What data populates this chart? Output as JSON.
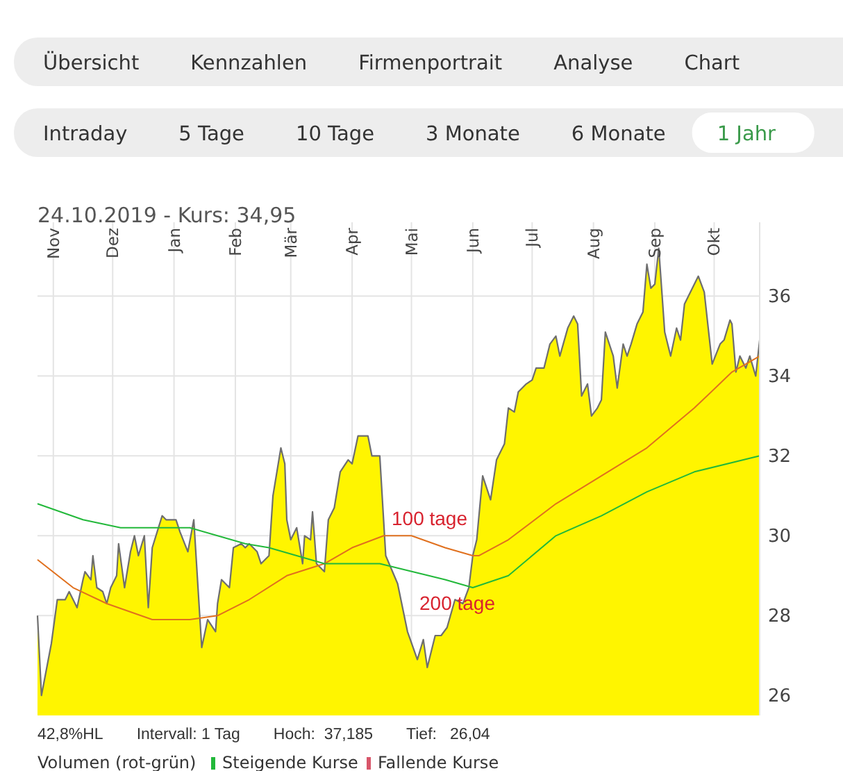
{
  "chart_data": {
    "type": "area",
    "title": "24.10.2019  - Kurs: 34,95",
    "annotations": [
      "Übersicht",
      "Kennzahlen",
      "Firmenportrait",
      "Analyse",
      "Chart",
      "Intraday",
      "5 Tage",
      "10 Tage",
      "3 Monate",
      "6 Monate",
      "1 Jahr",
      "42,8%HL",
      "Intervall: 1 Tag",
      "Hoch:  37,185",
      "Tief:   26,04",
      "Volumen (rot-grün)",
      "Steigende Kurse",
      "Fallende Kurse"
    ],
    "xlim": [
      "2018-10-24",
      "2019-10-24"
    ],
    "xticks": [
      {
        "value": "2018-11-01",
        "label": "Nov"
      },
      {
        "value": "2018-12-01",
        "label": "Dez"
      },
      {
        "value": "2019-01-01",
        "label": "Jan"
      },
      {
        "value": "2019-02-01",
        "label": "Feb"
      },
      {
        "value": "2019-03-01",
        "label": "Mär"
      },
      {
        "value": "2019-04-01",
        "label": "Apr"
      },
      {
        "value": "2019-05-01",
        "label": "Mai"
      },
      {
        "value": "2019-06-01",
        "label": "Jun"
      },
      {
        "value": "2019-07-01",
        "label": "Jul"
      },
      {
        "value": "2019-08-01",
        "label": "Aug"
      },
      {
        "value": "2019-09-01",
        "label": "Sep"
      },
      {
        "value": "2019-10-01",
        "label": "Okt"
      }
    ],
    "ylim": [
      25.5,
      37.85
    ],
    "yticks": [
      26,
      28,
      30,
      32,
      34,
      36
    ],
    "grid": true,
    "series": [
      {
        "color": "#fff500",
        "x": [
          "2018-10-24",
          "2018-10-26",
          "2018-10-31",
          "2018-11-03",
          "2018-11-07",
          "2018-11-09",
          "2018-11-13",
          "2018-11-16",
          "2018-11-17",
          "2018-11-20",
          "2018-11-21",
          "2018-11-23",
          "2018-11-26",
          "2018-11-28",
          "2018-11-30",
          "2018-12-03",
          "2018-12-04",
          "2018-12-07",
          "2018-12-10",
          "2018-12-12",
          "2018-12-14",
          "2018-12-17",
          "2018-12-19",
          "2018-12-21",
          "2018-12-26",
          "2018-12-28",
          "2019-01-02",
          "2019-01-04",
          "2019-01-08",
          "2019-01-11",
          "2019-01-15",
          "2019-01-18",
          "2019-01-22",
          "2019-01-23",
          "2019-01-25",
          "2019-01-29",
          "2019-01-31",
          "2019-02-04",
          "2019-02-06",
          "2019-02-08",
          "2019-02-12",
          "2019-02-14",
          "2019-02-18",
          "2019-02-20",
          "2019-02-24",
          "2019-02-26",
          "2019-02-27",
          "2019-03-01",
          "2019-03-04",
          "2019-03-07",
          "2019-03-08",
          "2019-03-11",
          "2019-03-12",
          "2019-03-14",
          "2019-03-18",
          "2019-03-20",
          "2019-03-23",
          "2019-03-26",
          "2019-03-30",
          "2019-04-01",
          "2019-04-04",
          "2019-04-09",
          "2019-04-11",
          "2019-04-15",
          "2019-04-18",
          "2019-04-24",
          "2019-04-29",
          "2019-05-04",
          "2019-05-07",
          "2019-05-09",
          "2019-05-13",
          "2019-05-16",
          "2019-05-19",
          "2019-05-23",
          "2019-05-27",
          "2019-05-30",
          "2019-06-01",
          "2019-06-03",
          "2019-06-06",
          "2019-06-10",
          "2019-06-13",
          "2019-06-17",
          "2019-06-19",
          "2019-06-22",
          "2019-06-24",
          "2019-06-28",
          "2019-07-01",
          "2019-07-03",
          "2019-07-07",
          "2019-07-10",
          "2019-07-13",
          "2019-07-15",
          "2019-07-19",
          "2019-07-22",
          "2019-07-24",
          "2019-07-26",
          "2019-07-29",
          "2019-07-31",
          "2019-08-03",
          "2019-08-05",
          "2019-08-07",
          "2019-08-11",
          "2019-08-13",
          "2019-08-16",
          "2019-08-18",
          "2019-08-20",
          "2019-08-23",
          "2019-08-26",
          "2019-08-28",
          "2019-08-30",
          "2019-09-01",
          "2019-09-03",
          "2019-09-06",
          "2019-09-09",
          "2019-09-12",
          "2019-09-14",
          "2019-09-16",
          "2019-09-20",
          "2019-09-23",
          "2019-09-26",
          "2019-09-28",
          "2019-09-30",
          "2019-10-04",
          "2019-10-06",
          "2019-10-09",
          "2019-10-10",
          "2019-10-12",
          "2019-10-14",
          "2019-10-17",
          "2019-10-19",
          "2019-10-22",
          "2019-10-24"
        ],
        "values": [
          28.0,
          26.0,
          27.3,
          28.4,
          28.4,
          28.6,
          28.2,
          28.9,
          29.1,
          28.9,
          29.5,
          28.7,
          28.6,
          28.3,
          28.7,
          29.0,
          29.8,
          28.7,
          29.6,
          30.0,
          29.5,
          30.0,
          28.2,
          29.7,
          30.5,
          30.4,
          30.4,
          30.1,
          29.6,
          30.4,
          27.2,
          27.9,
          27.6,
          28.3,
          28.9,
          28.7,
          29.7,
          29.8,
          29.7,
          29.8,
          29.6,
          29.3,
          29.5,
          31.0,
          32.2,
          31.8,
          30.4,
          29.9,
          30.2,
          29.3,
          30.0,
          29.9,
          30.6,
          29.3,
          29.1,
          30.4,
          30.7,
          31.6,
          31.9,
          31.8,
          32.5,
          32.5,
          32.0,
          32.0,
          29.5,
          28.8,
          27.6,
          26.9,
          27.4,
          26.7,
          27.5,
          27.5,
          27.7,
          28.4,
          28.3,
          28.7,
          29.5,
          29.9,
          31.5,
          30.9,
          31.9,
          32.3,
          33.2,
          33.1,
          33.6,
          33.8,
          33.9,
          34.2,
          34.2,
          34.8,
          35.0,
          34.5,
          35.2,
          35.5,
          35.3,
          33.5,
          33.8,
          33.0,
          33.2,
          33.4,
          35.1,
          34.5,
          33.7,
          34.8,
          34.5,
          34.8,
          35.3,
          35.6,
          36.8,
          36.2,
          36.3,
          37.2,
          35.1,
          34.5,
          35.2,
          34.9,
          35.8,
          36.2,
          36.5,
          36.1,
          35.2,
          34.3,
          34.8,
          34.9,
          35.4,
          35.3,
          34.1,
          34.5,
          34.2,
          34.5,
          34.0,
          34.9
        ]
      },
      {
        "type": "line",
        "name": "100 tage",
        "color": "#e0701e",
        "x": [
          "2018-10-24",
          "2018-11-11",
          "2018-11-28",
          "2018-12-21",
          "2019-01-09",
          "2019-01-23",
          "2019-02-08",
          "2019-02-27",
          "2019-03-18",
          "2019-04-01",
          "2019-04-17",
          "2019-05-01",
          "2019-05-18",
          "2019-06-01",
          "2019-06-04",
          "2019-06-19",
          "2019-07-13",
          "2019-08-05",
          "2019-08-28",
          "2019-09-21",
          "2019-10-10",
          "2019-10-24"
        ],
        "values": [
          29.4,
          28.7,
          28.3,
          27.9,
          27.9,
          28.0,
          28.4,
          29.0,
          29.3,
          29.7,
          30.0,
          30.0,
          29.7,
          29.5,
          29.5,
          29.9,
          30.8,
          31.5,
          32.2,
          33.2,
          34.1,
          34.5
        ]
      },
      {
        "type": "line",
        "name": "200 tage",
        "color": "#22b83a",
        "x": [
          "2018-10-24",
          "2018-11-16",
          "2018-12-05",
          "2019-01-09",
          "2019-02-06",
          "2019-02-18",
          "2019-03-18",
          "2019-04-15",
          "2019-05-18",
          "2019-06-01",
          "2019-06-19",
          "2019-07-13",
          "2019-08-05",
          "2019-08-28",
          "2019-09-21",
          "2019-10-24"
        ],
        "values": [
          30.8,
          30.4,
          30.2,
          30.2,
          29.8,
          29.7,
          29.3,
          29.3,
          28.9,
          28.7,
          29.0,
          30.0,
          30.5,
          31.1,
          31.6,
          32.0
        ]
      }
    ]
  }
}
